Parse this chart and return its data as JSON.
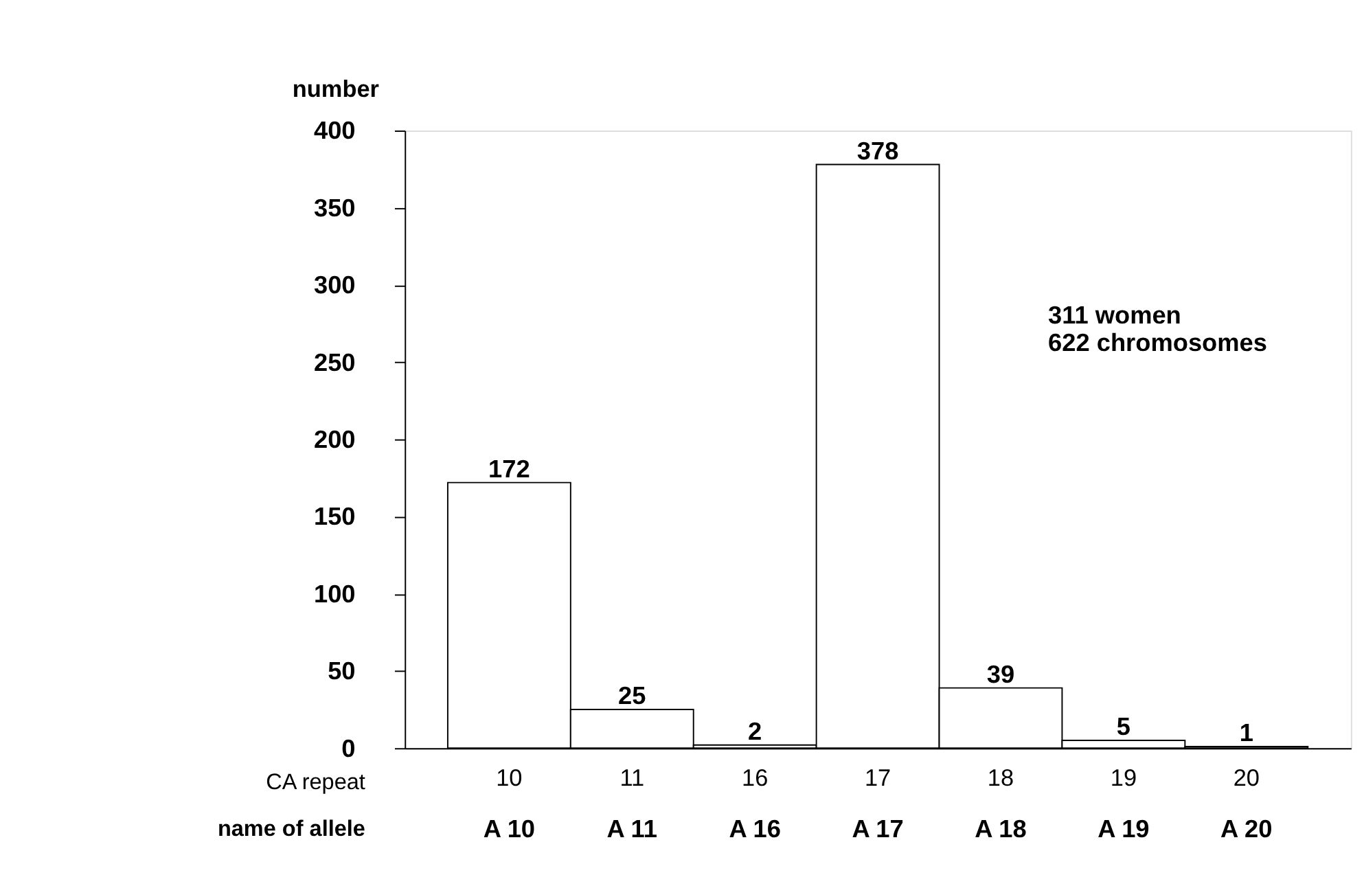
{
  "chart_data": {
    "type": "bar",
    "ylabel": "number",
    "xlabel": "CA repeat",
    "categories": [
      "10",
      "11",
      "16",
      "17",
      "18",
      "19",
      "20"
    ],
    "values": [
      172,
      25,
      2,
      378,
      39,
      5,
      1
    ],
    "color": "#ffffff",
    "data_labels": true,
    "ylim": [
      0,
      400
    ],
    "yticks": [
      0,
      50,
      100,
      150,
      200,
      250,
      300,
      350,
      400
    ],
    "grid": false,
    "annotations": [
      "311 women\n622 chromosomes",
      "name of allele",
      "A 10",
      "A 11",
      "A 16",
      "A 17",
      "A 18",
      "A 19",
      "A 20"
    ]
  }
}
